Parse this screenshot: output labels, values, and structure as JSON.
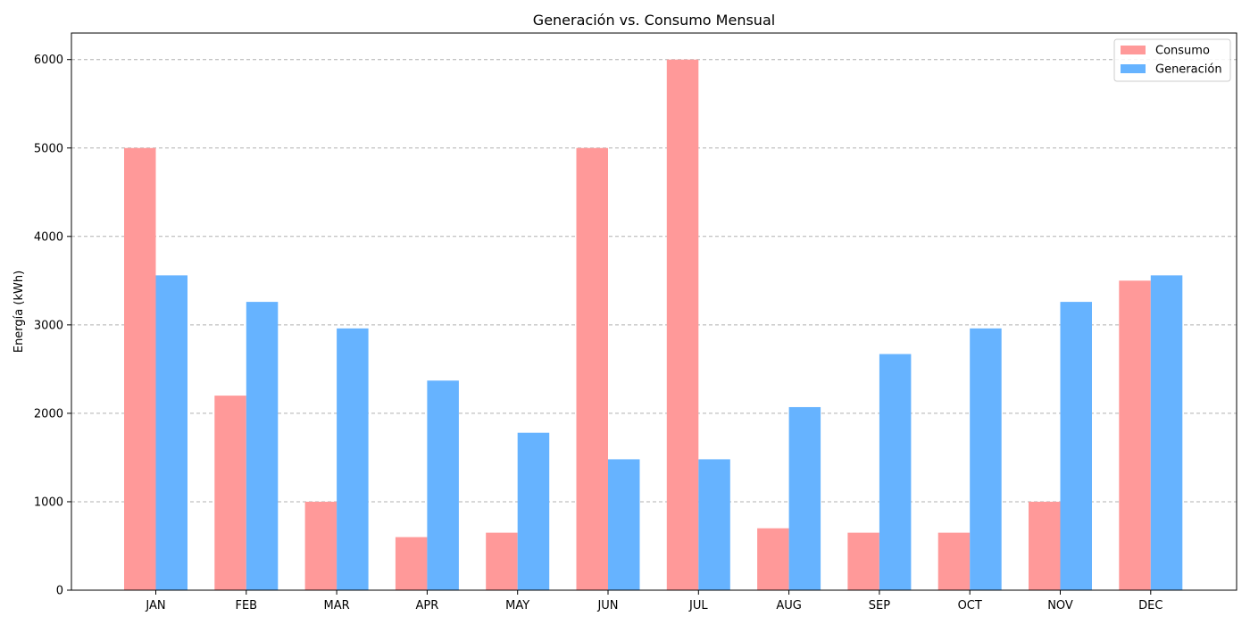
{
  "chart_data": {
    "type": "bar",
    "title": "Generación vs. Consumo Mensual",
    "xlabel": "",
    "ylabel": "Energía (kWh)",
    "categories": [
      "JAN",
      "FEB",
      "MAR",
      "APR",
      "MAY",
      "JUN",
      "JUL",
      "AUG",
      "SEP",
      "OCT",
      "NOV",
      "DEC"
    ],
    "series": [
      {
        "name": "Consumo",
        "color": "#ff9999",
        "values": [
          5000,
          2200,
          1000,
          600,
          650,
          5000,
          6000,
          700,
          650,
          650,
          1000,
          3500
        ]
      },
      {
        "name": "Generación",
        "color": "#66b3ff",
        "values": [
          3560,
          3260,
          2960,
          2370,
          1780,
          1480,
          1480,
          2070,
          2670,
          2960,
          3260,
          3560
        ]
      }
    ],
    "ylim": [
      0,
      6300
    ],
    "yticks": [
      0,
      1000,
      2000,
      3000,
      4000,
      5000,
      6000
    ],
    "grid": "horizontal-dashed",
    "legend_position": "top-right"
  }
}
